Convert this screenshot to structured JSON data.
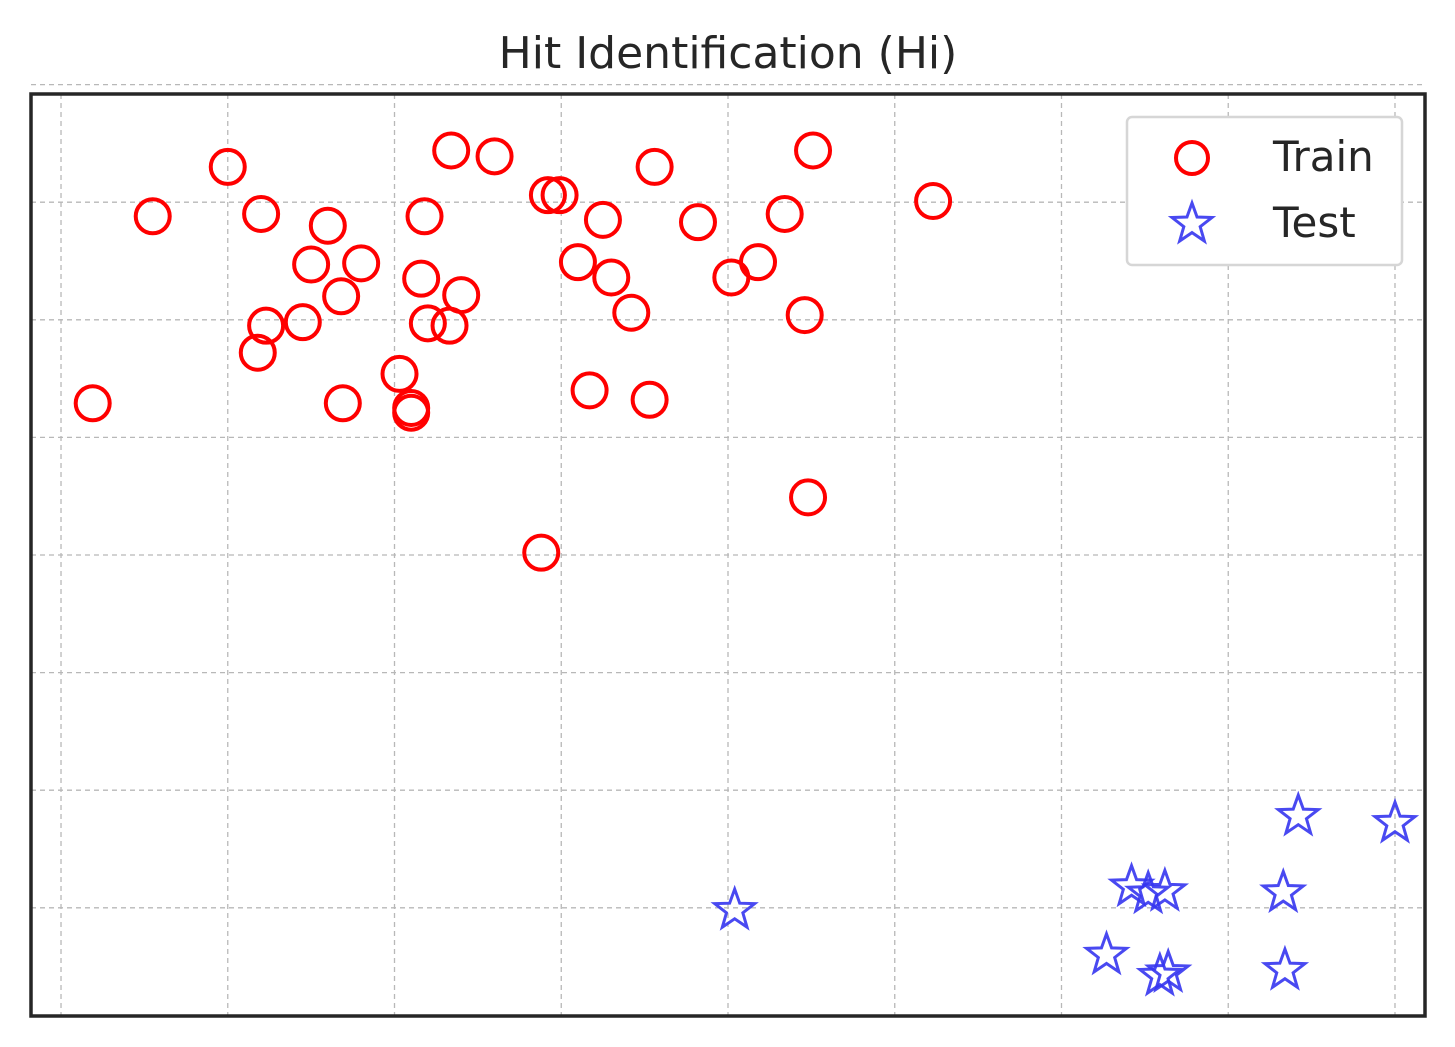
{
  "chart_data": {
    "type": "scatter",
    "title": "Hit Identification (Hi)",
    "xlabel": "",
    "ylabel": "",
    "xlim": [
      -0.18,
      8.18
    ],
    "ylim": [
      -0.92,
      6.92
    ],
    "xticks": [
      0,
      1,
      2,
      3,
      4,
      5,
      6,
      7,
      8
    ],
    "yticks": [
      0,
      1,
      2,
      3,
      4,
      5,
      6,
      7
    ],
    "grid": true,
    "legend_position": "top-right",
    "series": [
      {
        "name": "Train",
        "marker": "circle",
        "color": "#ff0000",
        "points": [
          [
            1.0,
            6.3
          ],
          [
            0.55,
            5.88
          ],
          [
            1.2,
            5.9
          ],
          [
            1.6,
            5.8
          ],
          [
            1.5,
            5.47
          ],
          [
            1.68,
            5.2
          ],
          [
            1.8,
            5.48
          ],
          [
            2.18,
            5.88
          ],
          [
            2.16,
            5.35
          ],
          [
            2.4,
            5.21
          ],
          [
            2.33,
            4.95
          ],
          [
            2.2,
            4.97
          ],
          [
            1.45,
            4.98
          ],
          [
            1.23,
            4.95
          ],
          [
            1.18,
            4.72
          ],
          [
            0.19,
            4.29
          ],
          [
            1.69,
            4.29
          ],
          [
            2.03,
            4.54
          ],
          [
            2.1,
            4.21
          ],
          [
            2.1,
            4.25
          ],
          [
            2.34,
            6.44
          ],
          [
            2.6,
            6.39
          ],
          [
            2.92,
            6.06
          ],
          [
            2.99,
            6.06
          ],
          [
            3.25,
            5.85
          ],
          [
            3.1,
            5.49
          ],
          [
            3.3,
            5.36
          ],
          [
            3.42,
            5.06
          ],
          [
            3.56,
            6.3
          ],
          [
            3.82,
            5.83
          ],
          [
            4.02,
            5.36
          ],
          [
            4.18,
            5.49
          ],
          [
            4.34,
            5.9
          ],
          [
            4.51,
            6.44
          ],
          [
            4.46,
            5.04
          ],
          [
            5.23,
            6.01
          ],
          [
            3.17,
            4.4
          ],
          [
            3.53,
            4.32
          ],
          [
            4.48,
            3.49
          ],
          [
            2.88,
            3.02
          ]
        ]
      },
      {
        "name": "Test",
        "marker": "star",
        "color": "#3535f0",
        "points": [
          [
            6.42,
            0.18
          ],
          [
            6.52,
            0.12
          ],
          [
            6.62,
            0.14
          ],
          [
            6.27,
            -0.4
          ],
          [
            8.0,
            0.72
          ],
          [
            7.42,
            0.78
          ],
          [
            7.33,
            0.13
          ],
          [
            4.04,
            -0.02
          ],
          [
            6.59,
            -0.58
          ],
          [
            6.64,
            -0.55
          ],
          [
            7.34,
            -0.53
          ]
        ]
      }
    ]
  }
}
